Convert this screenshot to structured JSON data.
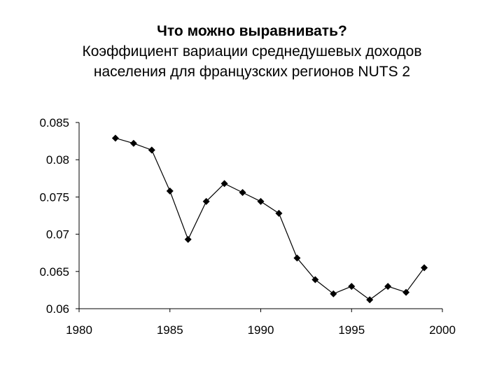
{
  "chart_data": {
    "type": "line",
    "title": "Что можно выравнивать?",
    "subtitle_lines": [
      "Коэффициент вариации среднедушевых доходов",
      "населения для французских регионов NUTS 2"
    ],
    "xlabel": "",
    "ylabel": "",
    "xlim": [
      1980,
      2000
    ],
    "ylim": [
      0.06,
      0.085
    ],
    "x_ticks": [
      "1980",
      "1985",
      "1990",
      "1995",
      "2000"
    ],
    "y_ticks": [
      "0.06",
      "0.065",
      "0.07",
      "0.075",
      "0.08",
      "0.085"
    ],
    "grid": false,
    "marker": "diamond",
    "line_color": "#000000",
    "series": [
      {
        "x": [
          1982,
          1983,
          1984,
          1985,
          1986,
          1987,
          1988,
          1989,
          1990,
          1991,
          1992,
          1993,
          1994,
          1995,
          1996,
          1997,
          1998,
          1999
        ],
        "y": [
          0.0829,
          0.0822,
          0.0813,
          0.0758,
          0.0693,
          0.0744,
          0.0768,
          0.0756,
          0.0744,
          0.0728,
          0.0668,
          0.0639,
          0.062,
          0.063,
          0.0612,
          0.063,
          0.0622,
          0.0655
        ]
      }
    ]
  }
}
